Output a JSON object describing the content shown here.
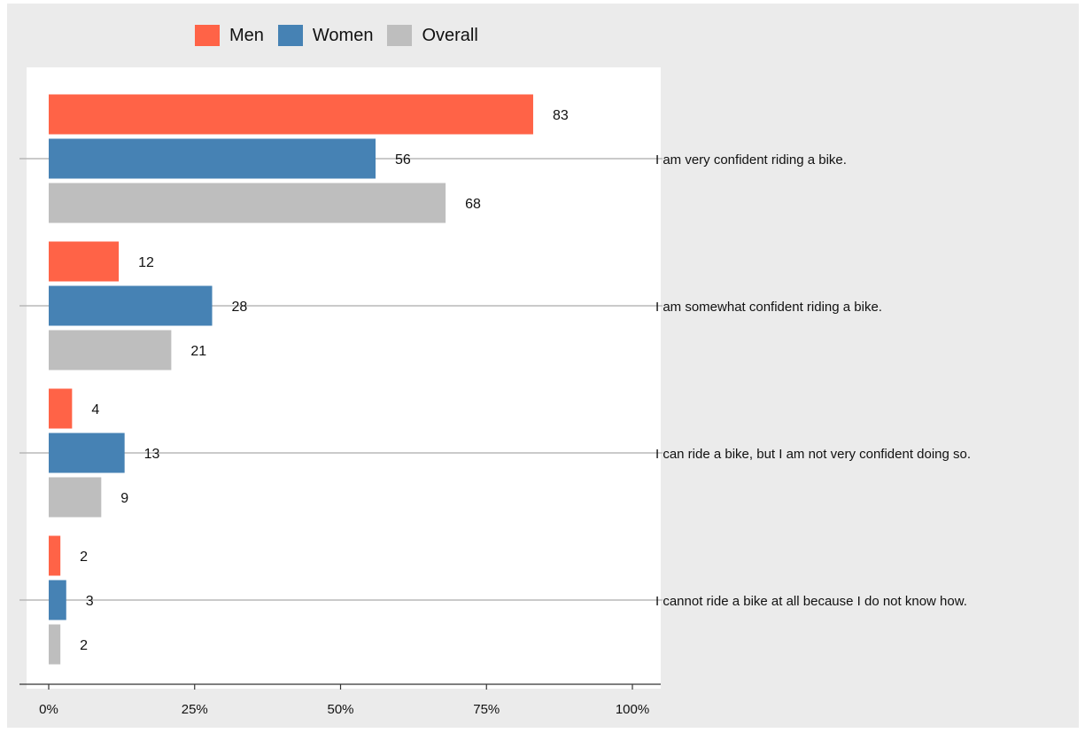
{
  "chart_data": {
    "type": "bar",
    "orientation": "horizontal",
    "title": "",
    "xlabel": "",
    "ylabel": "",
    "xlim": [
      0,
      100
    ],
    "x_ticks": [
      0,
      25,
      50,
      75,
      100
    ],
    "x_tick_labels": [
      "0%",
      "25%",
      "50%",
      "75%",
      "100%"
    ],
    "grid": false,
    "legend_position": "top",
    "categories": [
      "I am very confident riding a bike.",
      "I am somewhat confident riding a bike.",
      "I can ride a bike, but I am not very confident doing so.",
      "I cannot ride a bike at all because I do not know how."
    ],
    "series": [
      {
        "name": "Men",
        "color": "#ff6347",
        "values": [
          83,
          12,
          4,
          2
        ]
      },
      {
        "name": "Women",
        "color": "#4682b4",
        "values": [
          56,
          28,
          13,
          3
        ]
      },
      {
        "name": "Overall",
        "color": "#bebebe",
        "values": [
          68,
          21,
          9,
          2
        ]
      }
    ]
  }
}
